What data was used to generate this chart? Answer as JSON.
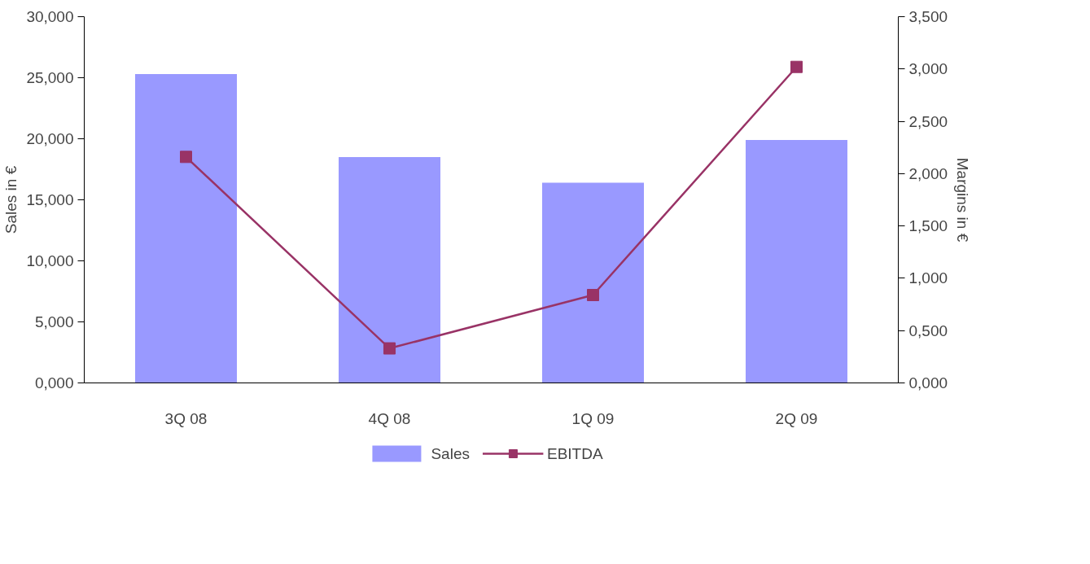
{
  "chart_data": {
    "type": "bar",
    "categories": [
      "3Q 08",
      "4Q 08",
      "1Q 09",
      "2Q 09"
    ],
    "ylabel": "Sales in €",
    "y2label": "Margins in €",
    "series": [
      {
        "name": "Sales",
        "color": "#9999ff",
        "values": [
          25.3,
          18.5,
          16.4,
          19.9
        ]
      },
      {
        "name": "EBITDA",
        "type": "line",
        "axis": "y2",
        "color": "#993366",
        "marker": "square",
        "line_style": "solid",
        "values": [
          2.16,
          0.33,
          0.84,
          3.02
        ]
      }
    ],
    "ylim": [
      0,
      30
    ],
    "yticks": [
      {
        "value": 0,
        "label": "0,000"
      },
      {
        "value": 5,
        "label": "5,000"
      },
      {
        "value": 10,
        "label": "10,000"
      },
      {
        "value": 15,
        "label": "15,000"
      },
      {
        "value": 20,
        "label": "20,000"
      },
      {
        "value": 25,
        "label": "25,000"
      },
      {
        "value": 30,
        "label": "30,000"
      }
    ],
    "y2lim": [
      0,
      3.5
    ],
    "y2ticks": [
      {
        "value": 0,
        "label": "0,000"
      },
      {
        "value": 0.5,
        "label": "0,500"
      },
      {
        "value": 1,
        "label": "1,000"
      },
      {
        "value": 1.5,
        "label": "1,500"
      },
      {
        "value": 2,
        "label": "2,000"
      },
      {
        "value": 2.5,
        "label": "2,500"
      },
      {
        "value": 3,
        "label": "3,000"
      },
      {
        "value": 3.5,
        "label": "3,500"
      }
    ],
    "grid": false,
    "legend": "bottom"
  }
}
